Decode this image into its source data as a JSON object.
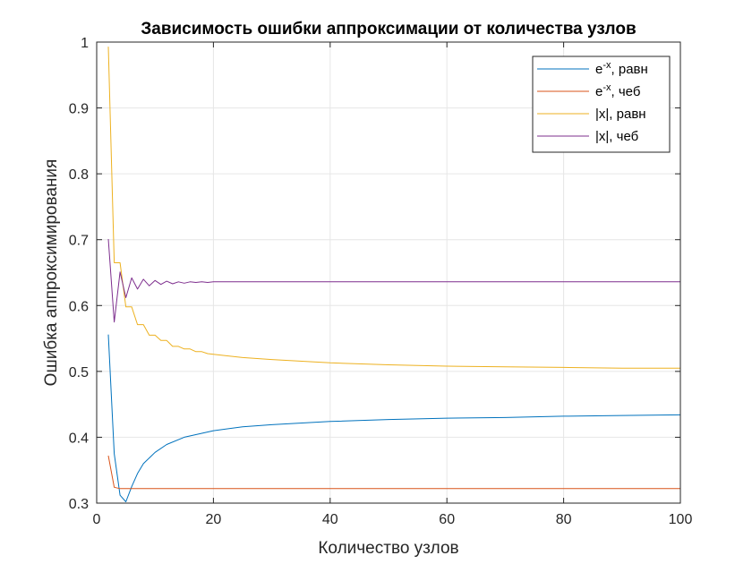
{
  "chart_data": {
    "type": "line",
    "title": "Зависимость ошибки аппроксимации от количества узлов",
    "xlabel": "Количество узлов",
    "ylabel": "Ошибка аппроксимирования",
    "xlim": [
      0,
      100
    ],
    "ylim": [
      0.3,
      1
    ],
    "xticks": [
      "0",
      "20",
      "40",
      "60",
      "80",
      "100"
    ],
    "yticks": [
      "0.3",
      "0.4",
      "0.5",
      "0.6",
      "0.7",
      "0.8",
      "0.9",
      "1"
    ],
    "grid": true,
    "legend_position": "top-right",
    "series": [
      {
        "name": "e-x, равн",
        "label_base": "e",
        "label_sup": "-x",
        "label_rest": ", равн",
        "color": "#0072BD",
        "x": [
          2,
          3,
          4,
          5,
          6,
          7,
          8,
          10,
          12,
          15,
          20,
          25,
          30,
          40,
          50,
          60,
          70,
          80,
          90,
          100
        ],
        "y": [
          0.556,
          0.375,
          0.312,
          0.302,
          0.325,
          0.345,
          0.36,
          0.377,
          0.389,
          0.4,
          0.41,
          0.416,
          0.419,
          0.424,
          0.427,
          0.429,
          0.43,
          0.432,
          0.433,
          0.434
        ]
      },
      {
        "name": "e-x, чеб",
        "label_base": "e",
        "label_sup": "-x",
        "label_rest": ", чеб",
        "color": "#D95319",
        "x": [
          2,
          3,
          4,
          5,
          10,
          20,
          40,
          60,
          80,
          100
        ],
        "y": [
          0.372,
          0.324,
          0.322,
          0.322,
          0.322,
          0.322,
          0.322,
          0.322,
          0.322,
          0.322
        ]
      },
      {
        "name": "|x|, равн",
        "label_base": "|x|, равн",
        "label_sup": "",
        "label_rest": "",
        "color": "#EDB120",
        "x": [
          2,
          3,
          4,
          5,
          6,
          7,
          8,
          9,
          10,
          11,
          12,
          13,
          14,
          15,
          16,
          17,
          18,
          19,
          20,
          25,
          30,
          40,
          50,
          60,
          70,
          80,
          90,
          100
        ],
        "y": [
          0.993,
          0.665,
          0.665,
          0.598,
          0.598,
          0.571,
          0.571,
          0.555,
          0.555,
          0.547,
          0.547,
          0.538,
          0.538,
          0.534,
          0.534,
          0.53,
          0.53,
          0.527,
          0.526,
          0.521,
          0.518,
          0.513,
          0.51,
          0.508,
          0.507,
          0.506,
          0.505,
          0.505
        ]
      },
      {
        "name": "|x|, чеб",
        "label_base": "|x|, чеб",
        "label_sup": "",
        "label_rest": "",
        "color": "#7E2F8E",
        "x": [
          2,
          3,
          4,
          5,
          6,
          7,
          8,
          9,
          10,
          11,
          12,
          13,
          14,
          15,
          16,
          17,
          18,
          19,
          20,
          25,
          30,
          40,
          60,
          80,
          100
        ],
        "y": [
          0.701,
          0.575,
          0.651,
          0.612,
          0.642,
          0.625,
          0.64,
          0.63,
          0.638,
          0.632,
          0.637,
          0.633,
          0.636,
          0.634,
          0.636,
          0.635,
          0.636,
          0.635,
          0.636,
          0.636,
          0.636,
          0.636,
          0.636,
          0.636,
          0.636
        ]
      }
    ]
  }
}
